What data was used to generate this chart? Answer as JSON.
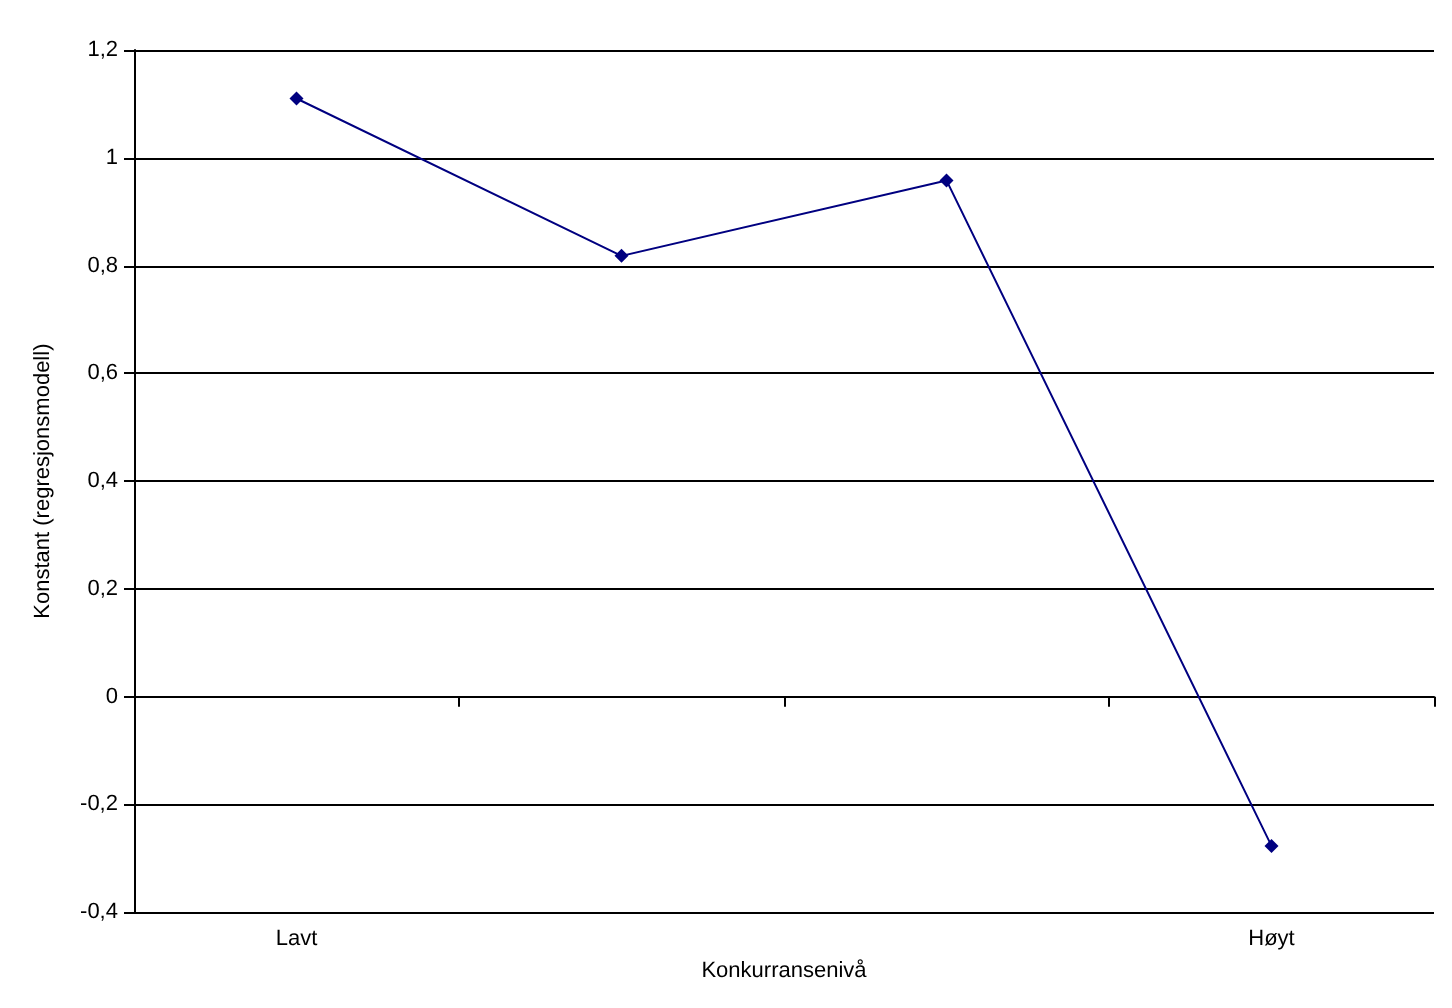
{
  "chart_data": {
    "type": "line",
    "xlabel": "Konkurransenivå",
    "ylabel": "Konstant (regresjonsmodell)",
    "categories": [
      "Lavt",
      null,
      null,
      "Høyt"
    ],
    "series": [
      {
        "color": "#000080",
        "values": [
          1.11,
          0.818,
          0.958,
          -0.277
        ]
      }
    ],
    "ylim": [
      -0.4,
      1.2
    ],
    "yticks": [
      {
        "value": -0.4,
        "label": "-0,4"
      },
      {
        "value": -0.2,
        "label": "-0,2"
      },
      {
        "value": 0,
        "label": "0"
      },
      {
        "value": 0.2,
        "label": "0,2"
      },
      {
        "value": 0.4,
        "label": "0,4"
      },
      {
        "value": 0.6,
        "label": "0,6"
      },
      {
        "value": 0.8,
        "label": "0,8"
      },
      {
        "value": 1,
        "label": "1"
      },
      {
        "value": 1.2,
        "label": "1,2"
      }
    ],
    "grid": "y",
    "marker": "diamond",
    "line_style": "solid"
  }
}
